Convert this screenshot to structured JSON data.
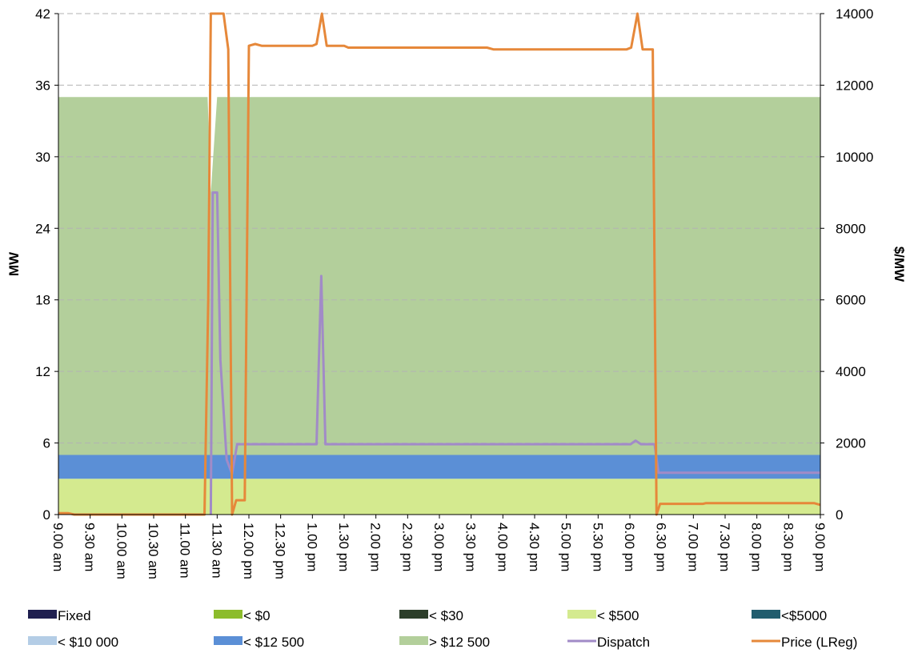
{
  "chart_data": {
    "type": "area",
    "ylabel": "MW",
    "y2label": "$/MW",
    "ylim": [
      0,
      42
    ],
    "y2lim": [
      0,
      14000
    ],
    "yticks": [
      0,
      6,
      12,
      18,
      24,
      30,
      36,
      42
    ],
    "y2ticks": [
      0,
      2000,
      4000,
      6000,
      8000,
      10000,
      12000,
      14000
    ],
    "grid": "horizontal dashed",
    "legend_position": "bottom",
    "categories": [
      "9.00 am",
      "9.30 am",
      "10.00 am",
      "10.30 am",
      "11.00 am",
      "11.30 am",
      "12.00 pm",
      "12.30 pm",
      "1.00 pm",
      "1.30 pm",
      "2.00 pm",
      "2.30 pm",
      "3.00 pm",
      "3.30 pm",
      "4.00 pm",
      "4.30 pm",
      "5.00 pm",
      "5.30 pm",
      "6.00 pm",
      "6.30 pm",
      "7.00 pm",
      "7.30 pm",
      "8.00 pm",
      "8.30 pm",
      "9.00 pm"
    ],
    "series": [
      {
        "name": "Fixed",
        "kind": "area",
        "color": "#1f1f4f",
        "points": [
          [
            0,
            0
          ],
          [
            24,
            0
          ]
        ]
      },
      {
        "name": "< $0",
        "kind": "area",
        "color": "#8cbc2c",
        "points": [
          [
            0,
            0
          ],
          [
            24,
            0
          ]
        ]
      },
      {
        "name": "< $30",
        "kind": "area",
        "color": "#2c3e2a",
        "points": [
          [
            0,
            0
          ],
          [
            24,
            0
          ]
        ]
      },
      {
        "name": "< $500",
        "kind": "area",
        "color": "#d4ea8f",
        "points": [
          [
            0,
            3
          ],
          [
            24,
            3
          ]
        ]
      },
      {
        "name": "<$5000",
        "kind": "area",
        "color": "#215d6e",
        "points": [
          [
            0,
            0
          ],
          [
            24,
            0
          ]
        ]
      },
      {
        "name": "< $10 000",
        "kind": "area",
        "color": "#b4cde6",
        "points": [
          [
            0,
            0
          ],
          [
            24,
            0
          ]
        ]
      },
      {
        "name": "< $12 500",
        "kind": "area",
        "color": "#5b8fd6",
        "points": [
          [
            0,
            2
          ],
          [
            24,
            2
          ]
        ]
      },
      {
        "name": "> $12 500",
        "kind": "area",
        "color": "#b3cf9b",
        "points": [
          [
            0,
            30
          ],
          [
            4.7,
            30
          ],
          [
            4.8,
            22
          ],
          [
            5.0,
            30
          ],
          [
            24,
            30
          ],
          [
            23.85,
            29.8
          ],
          [
            23.9,
            12.5
          ],
          [
            24.1,
            25.1
          ],
          [
            24.4,
            28.9
          ],
          [
            24.65,
            30.3
          ],
          [
            24.9,
            29.3
          ],
          [
            25,
            24.5
          ],
          [
            26,
            20
          ]
        ]
      },
      {
        "name": "Dispatch",
        "kind": "line",
        "axis": "left",
        "color": "#a18bc7",
        "points": [
          [
            4.8,
            0
          ],
          [
            4.86,
            27
          ],
          [
            5.0,
            27
          ],
          [
            5.1,
            13
          ],
          [
            5.3,
            4.6
          ],
          [
            5.47,
            3.4
          ],
          [
            5.63,
            5.9
          ],
          [
            8.13,
            5.9
          ],
          [
            8.28,
            20
          ],
          [
            8.41,
            5.9
          ],
          [
            18.02,
            5.9
          ],
          [
            18.18,
            6.2
          ],
          [
            18.35,
            5.9
          ],
          [
            18.78,
            5.9
          ],
          [
            18.9,
            3.5
          ],
          [
            24,
            3.5
          ]
        ]
      },
      {
        "name": "Price (LReg)",
        "kind": "line",
        "axis": "right",
        "color": "#e6883a",
        "points": [
          [
            0,
            40
          ],
          [
            0.3,
            40
          ],
          [
            0.5,
            0
          ],
          [
            4.6,
            0
          ],
          [
            4.72,
            6000
          ],
          [
            4.8,
            14000
          ],
          [
            5.2,
            14000
          ],
          [
            5.35,
            13000
          ],
          [
            5.47,
            0
          ],
          [
            5.6,
            400
          ],
          [
            5.87,
            400
          ],
          [
            6.0,
            13100
          ],
          [
            6.2,
            13150
          ],
          [
            6.4,
            13100
          ],
          [
            8.0,
            13100
          ],
          [
            8.13,
            13150
          ],
          [
            8.3,
            14000
          ],
          [
            8.45,
            13100
          ],
          [
            9.0,
            13100
          ],
          [
            9.13,
            13050
          ],
          [
            13.5,
            13050
          ],
          [
            13.7,
            13000
          ],
          [
            17.9,
            13000
          ],
          [
            18.04,
            13050
          ],
          [
            18.24,
            14000
          ],
          [
            18.4,
            13000
          ],
          [
            18.72,
            13000
          ],
          [
            18.84,
            0
          ],
          [
            18.95,
            300
          ],
          [
            20.3,
            300
          ],
          [
            20.4,
            320
          ],
          [
            22.7,
            320
          ],
          [
            23.8,
            320
          ],
          [
            24,
            270
          ]
        ]
      }
    ]
  }
}
